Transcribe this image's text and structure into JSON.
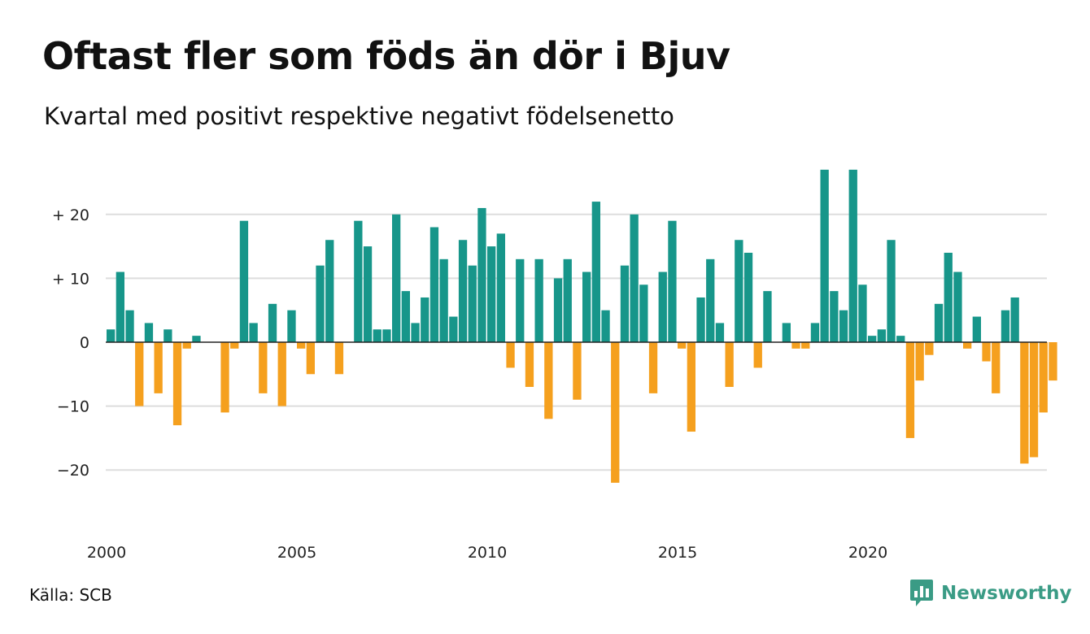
{
  "title": "Oftast fler som föds än dör i Bjuv",
  "subtitle": "Kvartal med positivt respektive negativt födelsenetto",
  "source": "Källa: SCB",
  "brand": {
    "name": "Newsworthy",
    "icon": "newsworthy-logo-icon"
  },
  "colors": {
    "positive": "#17968a",
    "negative": "#f5a01e",
    "grid": "#dddddd",
    "zero": "#222222",
    "brand": "#3a9b85"
  },
  "chart_data": {
    "type": "bar",
    "title": "Oftast fler som föds än dör i Bjuv",
    "subtitle": "Kvartal med positivt respektive negativt födelsenetto",
    "x_start": "2000 Q1",
    "x_tick_labels": [
      "2000",
      "2005",
      "2010",
      "2015",
      "2020"
    ],
    "y_ticks": [
      20,
      10,
      0,
      -10,
      -20
    ],
    "y_tick_labels": [
      "+ 20",
      "+ 10",
      "0",
      "−10",
      "−20"
    ],
    "ylim": [
      -25,
      27
    ],
    "grid": true,
    "legend": "none",
    "values": [
      2,
      11,
      5,
      -10,
      3,
      -8,
      2,
      -13,
      -1,
      1,
      0,
      0,
      -11,
      -1,
      19,
      3,
      -8,
      6,
      -10,
      5,
      -1,
      -5,
      12,
      16,
      -5,
      0,
      19,
      15,
      2,
      2,
      20,
      8,
      3,
      7,
      18,
      13,
      4,
      16,
      12,
      21,
      15,
      17,
      -4,
      13,
      -7,
      13,
      -12,
      10,
      13,
      -9,
      11,
      22,
      5,
      -22,
      12,
      20,
      9,
      -8,
      11,
      19,
      -1,
      -14,
      7,
      13,
      3,
      -7,
      16,
      14,
      -4,
      8,
      0,
      3,
      -1,
      -1,
      3,
      27,
      8,
      5,
      27,
      9,
      1,
      2,
      16,
      1,
      -15,
      -6,
      -2,
      6,
      14,
      11,
      -1,
      4,
      -3,
      -8,
      5,
      7,
      -19,
      -18,
      -11,
      -6
    ]
  }
}
